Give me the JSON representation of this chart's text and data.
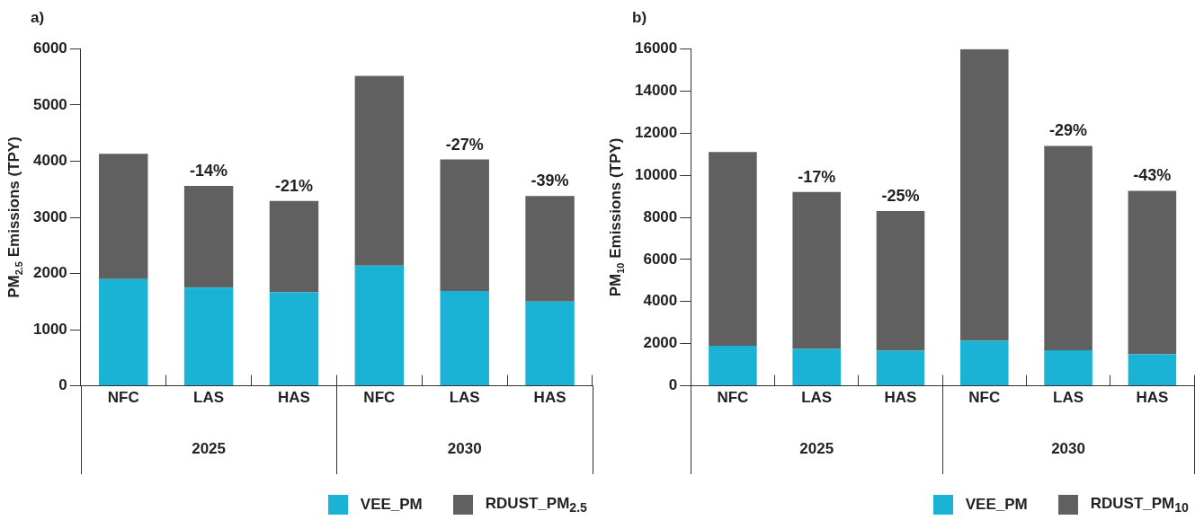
{
  "chart_data": [
    {
      "type": "bar",
      "title": "a)",
      "ylabel": "PM$_{2.5}$ Emissions (TPY)",
      "categories": [
        "NFC",
        "LAS",
        "HAS",
        "NFC",
        "LAS",
        "HAS"
      ],
      "stacked": true,
      "grid": false,
      "legend": "bottom right",
      "series": [
        {
          "name": "VEE_PM",
          "color": "#1ab3d6",
          "values": [
            1900,
            1750,
            1670,
            2140,
            1690,
            1500
          ]
        },
        {
          "name": "RDUST_PM$_{2.5}$",
          "color": "#606060",
          "values": [
            2230,
            1810,
            1620,
            3380,
            2340,
            1880
          ]
        }
      ],
      "ylim": [
        0,
        6000
      ],
      "yticks": [
        0,
        1000,
        2000,
        3000,
        4000,
        5000,
        6000
      ],
      "annotations": [
        "2025",
        "2030",
        {
          "text": "-14%",
          "x": "LAS",
          "y": 3560
        },
        {
          "text": "-21%",
          "x": "HAS",
          "y": 3290
        },
        {
          "text": "-27%",
          "y": 4030
        },
        {
          "text": "-39%",
          "y": 3380
        }
      ]
    },
    {
      "type": "bar",
      "title": "b)",
      "ylabel": "PM$_{10}$ Emissions (TPY)",
      "categories": [
        "NFC",
        "LAS",
        "HAS",
        "NFC",
        "LAS",
        "HAS"
      ],
      "stacked": true,
      "grid": false,
      "legend": "bottom right",
      "series": [
        {
          "name": "VEE_PM",
          "color": "#1ab3d6",
          "values": [
            1900,
            1750,
            1670,
            2140,
            1690,
            1500
          ]
        },
        {
          "name": "RDUST_PM$_{10}$",
          "color": "#606060",
          "values": [
            9200,
            7450,
            6630,
            13850,
            9700,
            7760
          ]
        }
      ],
      "ylim": [
        0,
        16000
      ],
      "yticks": [
        0,
        2000,
        4000,
        6000,
        8000,
        10000,
        12000,
        14000,
        16000
      ],
      "annotations": [
        "2025",
        "2030",
        {
          "text": "-17%",
          "x": "LAS",
          "y": 9200
        },
        {
          "text": "-25%",
          "x": "HAS",
          "y": 8300
        },
        {
          "text": "-29%",
          "y": 11390
        },
        {
          "text": "-43%",
          "y": 9260
        }
      ]
    }
  ]
}
